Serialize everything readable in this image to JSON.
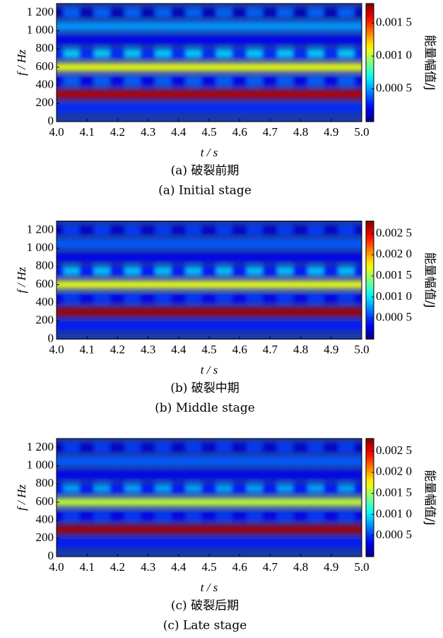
{
  "chart_data": [
    {
      "type": "heatmap",
      "xlabel": "t / s",
      "ylabel": "f / Hz",
      "colorbar_label": "能量幅值/J",
      "caption_cn": "(a) 破裂前期",
      "caption_en": "(a) Initial stage",
      "xlim": [
        4.0,
        5.0
      ],
      "xticks": [
        {
          "value": 4,
          "label": "4.0"
        },
        4.1,
        4.2,
        4.3,
        4.4,
        4.5,
        4.6,
        4.7,
        4.8,
        4.9,
        {
          "value": 5,
          "label": "5.0"
        }
      ],
      "ylim": [
        0,
        1300
      ],
      "yticks": [
        0,
        200,
        400,
        600,
        800,
        {
          "value": 1000,
          "label": "1 000"
        },
        {
          "value": 1200,
          "label": "1 200"
        }
      ],
      "clim": [
        0,
        0.0018
      ],
      "cticks": [
        {
          "value": 0.0005,
          "label": "0.000 5"
        },
        {
          "value": 0.001,
          "label": "0.001 0"
        },
        {
          "value": 0.0015,
          "label": "0.001 5"
        }
      ],
      "colormap": "jet",
      "x": [
        4.0,
        4.05,
        4.1,
        4.15,
        4.2,
        4.25,
        4.3,
        4.35,
        4.4,
        4.45,
        4.5,
        4.55,
        4.6,
        4.65,
        4.7,
        4.75,
        4.8,
        4.85,
        4.9,
        4.95,
        5.0
      ],
      "y": [
        150,
        300,
        450,
        600,
        750,
        900,
        1050,
        1200
      ],
      "values": [
        [
          0.0003,
          0.0003,
          0.0003,
          0.0003,
          0.0003,
          0.0003,
          0.0003,
          0.0003,
          0.0003,
          0.0003,
          0.0003,
          0.0003,
          0.0003,
          0.0003,
          0.0003,
          0.0003,
          0.0003,
          0.0003,
          0.0003,
          0.0003,
          0.0003
        ],
        [
          0.0017,
          0.0017,
          0.0017,
          0.0017,
          0.0017,
          0.0017,
          0.0017,
          0.0017,
          0.0017,
          0.0017,
          0.0017,
          0.0017,
          0.0017,
          0.0017,
          0.0017,
          0.0017,
          0.0017,
          0.0017,
          0.0017,
          0.0017,
          0.0017
        ],
        [
          0.0002,
          0.0004,
          0.0002,
          0.0004,
          0.0002,
          0.0004,
          0.0002,
          0.0004,
          0.0002,
          0.0004,
          0.0002,
          0.0004,
          0.0002,
          0.0004,
          0.0002,
          0.0004,
          0.0002,
          0.0004,
          0.0002,
          0.0004,
          0.0002
        ],
        [
          0.0011,
          0.0011,
          0.0011,
          0.0011,
          0.0011,
          0.0011,
          0.0011,
          0.0011,
          0.0011,
          0.0011,
          0.0011,
          0.0011,
          0.0011,
          0.0011,
          0.0011,
          0.0011,
          0.0011,
          0.0011,
          0.0011,
          0.0011,
          0.0011
        ],
        [
          0.0003,
          0.0006,
          0.0003,
          0.0006,
          0.0003,
          0.0006,
          0.0003,
          0.0006,
          0.0003,
          0.0006,
          0.0003,
          0.0006,
          0.0003,
          0.0006,
          0.0003,
          0.0006,
          0.0003,
          0.0006,
          0.0003,
          0.0006,
          0.0003
        ],
        [
          0.0002,
          0.0002,
          0.0002,
          0.0002,
          0.0002,
          0.0002,
          0.0002,
          0.0002,
          0.0002,
          0.0002,
          0.0002,
          0.0002,
          0.0002,
          0.0002,
          0.0002,
          0.0002,
          0.0002,
          0.0002,
          0.0002,
          0.0002,
          0.0002
        ],
        [
          0.0005,
          0.0005,
          0.0005,
          0.0005,
          0.0005,
          0.0005,
          0.0005,
          0.0005,
          0.0005,
          0.0005,
          0.0005,
          0.0005,
          0.0005,
          0.0005,
          0.0005,
          0.0005,
          0.0005,
          0.0005,
          0.0005,
          0.0005,
          0.0005
        ],
        [
          0.0001,
          0.0004,
          0.0001,
          0.0004,
          0.0001,
          0.0004,
          0.0001,
          0.0004,
          0.0001,
          0.0004,
          0.0001,
          0.0004,
          0.0001,
          0.0004,
          0.0001,
          0.0004,
          0.0001,
          0.0004,
          0.0001,
          0.0004,
          0.0001
        ]
      ]
    },
    {
      "type": "heatmap",
      "xlabel": "t / s",
      "ylabel": "f / Hz",
      "colorbar_label": "能量幅值/J",
      "caption_cn": "(b) 破裂中期",
      "caption_en": "(b) Middle stage",
      "xlim": [
        4.0,
        5.0
      ],
      "xticks": [
        {
          "value": 4,
          "label": "4.0"
        },
        4.1,
        4.2,
        4.3,
        4.4,
        4.5,
        4.6,
        4.7,
        4.8,
        4.9,
        {
          "value": 5,
          "label": "5.0"
        }
      ],
      "ylim": [
        0,
        1300
      ],
      "yticks": [
        0,
        200,
        400,
        600,
        800,
        {
          "value": 1000,
          "label": "1 000"
        },
        {
          "value": 1200,
          "label": "1 200"
        }
      ],
      "clim": [
        0,
        0.0028
      ],
      "cticks": [
        {
          "value": 0.0005,
          "label": "0.000 5"
        },
        {
          "value": 0.001,
          "label": "0.001 0"
        },
        {
          "value": 0.0015,
          "label": "0.001 5"
        },
        {
          "value": 0.002,
          "label": "0.002 0"
        },
        {
          "value": 0.0025,
          "label": "0.002 5"
        }
      ],
      "colormap": "jet",
      "x": [
        4.0,
        4.05,
        4.1,
        4.15,
        4.2,
        4.25,
        4.3,
        4.35,
        4.4,
        4.45,
        4.5,
        4.55,
        4.6,
        4.65,
        4.7,
        4.75,
        4.8,
        4.85,
        4.9,
        4.95,
        5.0
      ],
      "y": [
        150,
        300,
        450,
        600,
        750,
        900,
        1050,
        1200
      ],
      "values": [
        [
          0.0004,
          0.0004,
          0.0004,
          0.0004,
          0.0004,
          0.0004,
          0.0004,
          0.0004,
          0.0004,
          0.0004,
          0.0004,
          0.0004,
          0.0004,
          0.0004,
          0.0004,
          0.0004,
          0.0004,
          0.0004,
          0.0004,
          0.0004,
          0.0004
        ],
        [
          0.0027,
          0.0027,
          0.0027,
          0.0027,
          0.0027,
          0.0027,
          0.0027,
          0.0027,
          0.0027,
          0.0027,
          0.0027,
          0.0027,
          0.0027,
          0.0027,
          0.0027,
          0.0027,
          0.0027,
          0.0027,
          0.0027,
          0.0027,
          0.0027
        ],
        [
          0.0003,
          0.0005,
          0.0003,
          0.0005,
          0.0003,
          0.0005,
          0.0003,
          0.0005,
          0.0003,
          0.0005,
          0.0003,
          0.0005,
          0.0003,
          0.0005,
          0.0003,
          0.0005,
          0.0003,
          0.0005,
          0.0003,
          0.0005,
          0.0003
        ],
        [
          0.0017,
          0.0017,
          0.0017,
          0.0017,
          0.0017,
          0.0017,
          0.0017,
          0.0017,
          0.0017,
          0.0017,
          0.0017,
          0.0017,
          0.0017,
          0.0017,
          0.0017,
          0.0017,
          0.0017,
          0.0017,
          0.0017,
          0.0017,
          0.0017
        ],
        [
          0.0004,
          0.0009,
          0.0004,
          0.0009,
          0.0004,
          0.0009,
          0.0004,
          0.0009,
          0.0004,
          0.0009,
          0.0004,
          0.0009,
          0.0004,
          0.0009,
          0.0004,
          0.0009,
          0.0004,
          0.0009,
          0.0004,
          0.0009,
          0.0004
        ],
        [
          0.0003,
          0.0003,
          0.0003,
          0.0003,
          0.0003,
          0.0003,
          0.0003,
          0.0003,
          0.0003,
          0.0003,
          0.0003,
          0.0003,
          0.0003,
          0.0003,
          0.0003,
          0.0003,
          0.0003,
          0.0003,
          0.0003,
          0.0003,
          0.0003
        ],
        [
          0.0006,
          0.0006,
          0.0006,
          0.0006,
          0.0006,
          0.0006,
          0.0006,
          0.0006,
          0.0006,
          0.0006,
          0.0006,
          0.0006,
          0.0006,
          0.0006,
          0.0006,
          0.0006,
          0.0006,
          0.0006,
          0.0006,
          0.0006,
          0.0006
        ],
        [
          0.0002,
          0.0005,
          0.0002,
          0.0005,
          0.0002,
          0.0005,
          0.0002,
          0.0005,
          0.0002,
          0.0005,
          0.0002,
          0.0005,
          0.0002,
          0.0005,
          0.0002,
          0.0005,
          0.0002,
          0.0005,
          0.0002,
          0.0005,
          0.0002
        ]
      ]
    },
    {
      "type": "heatmap",
      "xlabel": "t / s",
      "ylabel": "f / Hz",
      "colorbar_label": "能量幅值/J",
      "caption_cn": "(c) 破裂后期",
      "caption_en": "(c) Late stage",
      "xlim": [
        4.0,
        5.0
      ],
      "xticks": [
        {
          "value": 4,
          "label": "4.0"
        },
        4.1,
        4.2,
        4.3,
        4.4,
        4.5,
        4.6,
        4.7,
        4.8,
        4.9,
        {
          "value": 5,
          "label": "5.0"
        }
      ],
      "ylim": [
        0,
        1300
      ],
      "yticks": [
        0,
        200,
        400,
        600,
        800,
        {
          "value": 1000,
          "label": "1 000"
        },
        {
          "value": 1200,
          "label": "1 200"
        }
      ],
      "clim": [
        0,
        0.0028
      ],
      "cticks": [
        {
          "value": 0.0005,
          "label": "0.000 5"
        },
        {
          "value": 0.001,
          "label": "0.001 0"
        },
        {
          "value": 0.0015,
          "label": "0.001 5"
        },
        {
          "value": 0.002,
          "label": "0.002 0"
        },
        {
          "value": 0.0025,
          "label": "0.002 5"
        }
      ],
      "colormap": "jet",
      "x": [
        4.0,
        4.05,
        4.1,
        4.15,
        4.2,
        4.25,
        4.3,
        4.35,
        4.4,
        4.45,
        4.5,
        4.55,
        4.6,
        4.65,
        4.7,
        4.75,
        4.8,
        4.85,
        4.9,
        4.95,
        5.0
      ],
      "y": [
        150,
        300,
        450,
        600,
        750,
        900,
        1050,
        1200
      ],
      "values": [
        [
          0.0004,
          0.0004,
          0.0004,
          0.0004,
          0.0004,
          0.0004,
          0.0004,
          0.0004,
          0.0004,
          0.0004,
          0.0004,
          0.0004,
          0.0004,
          0.0004,
          0.0004,
          0.0004,
          0.0004,
          0.0004,
          0.0004,
          0.0004,
          0.0004
        ],
        [
          0.0027,
          0.0027,
          0.0027,
          0.0027,
          0.0027,
          0.0027,
          0.0027,
          0.0027,
          0.0027,
          0.0027,
          0.0027,
          0.0027,
          0.0027,
          0.0027,
          0.0027,
          0.0027,
          0.0027,
          0.0027,
          0.0027,
          0.0027,
          0.0027
        ],
        [
          0.0003,
          0.0005,
          0.0003,
          0.0005,
          0.0003,
          0.0005,
          0.0003,
          0.0005,
          0.0003,
          0.0005,
          0.0003,
          0.0005,
          0.0003,
          0.0005,
          0.0003,
          0.0005,
          0.0003,
          0.0005,
          0.0003,
          0.0005,
          0.0003
        ],
        [
          0.0016,
          0.0016,
          0.0016,
          0.0016,
          0.0016,
          0.0016,
          0.0016,
          0.0016,
          0.0016,
          0.0016,
          0.0016,
          0.0016,
          0.0016,
          0.0016,
          0.0016,
          0.0016,
          0.0016,
          0.0016,
          0.0016,
          0.0016,
          0.0016
        ],
        [
          0.0004,
          0.0008,
          0.0004,
          0.0008,
          0.0004,
          0.0008,
          0.0004,
          0.0008,
          0.0004,
          0.0008,
          0.0004,
          0.0008,
          0.0004,
          0.0008,
          0.0004,
          0.0008,
          0.0004,
          0.0008,
          0.0004,
          0.0008,
          0.0004
        ],
        [
          0.0003,
          0.0003,
          0.0003,
          0.0003,
          0.0003,
          0.0003,
          0.0003,
          0.0003,
          0.0003,
          0.0003,
          0.0003,
          0.0003,
          0.0003,
          0.0003,
          0.0003,
          0.0003,
          0.0003,
          0.0003,
          0.0003,
          0.0003,
          0.0003
        ],
        [
          0.0006,
          0.0006,
          0.0006,
          0.0006,
          0.0006,
          0.0006,
          0.0006,
          0.0006,
          0.0006,
          0.0006,
          0.0006,
          0.0006,
          0.0006,
          0.0006,
          0.0006,
          0.0006,
          0.0006,
          0.0006,
          0.0006,
          0.0006,
          0.0006
        ],
        [
          0.0002,
          0.0005,
          0.0002,
          0.0005,
          0.0002,
          0.0005,
          0.0002,
          0.0005,
          0.0002,
          0.0005,
          0.0002,
          0.0005,
          0.0002,
          0.0005,
          0.0002,
          0.0005,
          0.0002,
          0.0005,
          0.0002,
          0.0005,
          0.0002
        ]
      ]
    }
  ]
}
